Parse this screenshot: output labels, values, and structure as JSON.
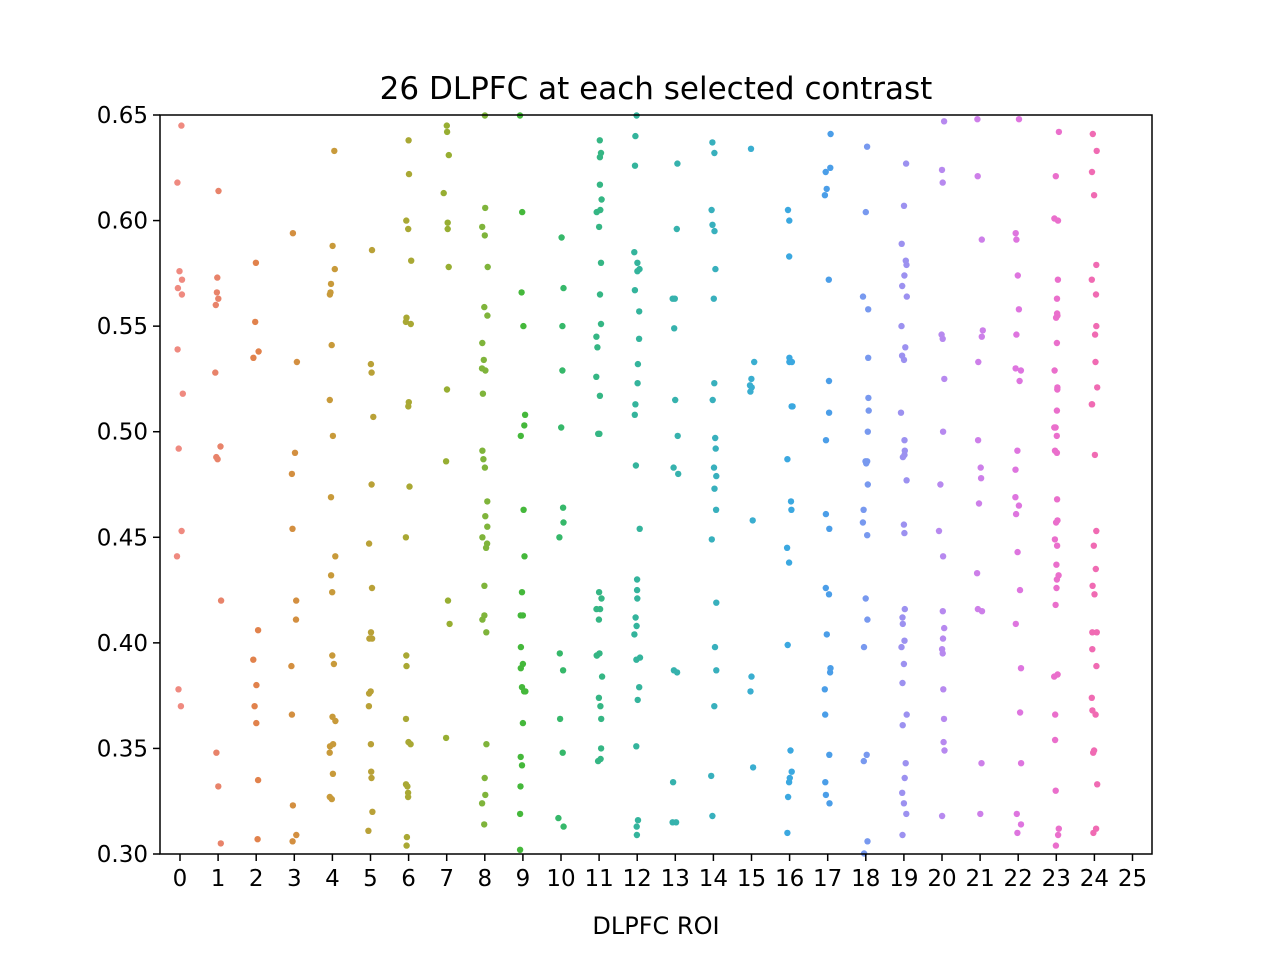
{
  "chart_data": {
    "type": "scatter",
    "title": "26 DLPFC at each selected contrast",
    "xlabel": "DLPFC ROI",
    "ylabel": "",
    "ylim": [
      0.3,
      0.65
    ],
    "xticks": [
      "0",
      "1",
      "2",
      "3",
      "4",
      "5",
      "6",
      "7",
      "8",
      "9",
      "10",
      "11",
      "12",
      "13",
      "14",
      "15",
      "16",
      "17",
      "18",
      "19",
      "20",
      "21",
      "22",
      "23",
      "24",
      "25"
    ],
    "yticks": [
      "0.30",
      "0.35",
      "0.40",
      "0.45",
      "0.50",
      "0.55",
      "0.60",
      "0.65"
    ],
    "colors": [
      "#ef8a80",
      "#e8836a",
      "#e1824c",
      "#d38f40",
      "#c89a3a",
      "#b9a137",
      "#a9a834",
      "#97ae32",
      "#7fb43b",
      "#45b83b",
      "#36b86a",
      "#35b684",
      "#34b49c",
      "#36b2ad",
      "#38b0bd",
      "#3aaed0",
      "#3ba8e0",
      "#4b9ee8",
      "#7899ef",
      "#9c91f0",
      "#b789ef",
      "#cd7fe9",
      "#de75df",
      "#ea6fcc",
      "#f06bb3",
      "#f2a1b3"
    ],
    "series": [
      {
        "name": "0",
        "values": [
          0.645,
          0.618,
          0.576,
          0.572,
          0.568,
          0.565,
          0.539,
          0.518,
          0.492,
          0.453,
          0.441,
          0.378,
          0.37
        ]
      },
      {
        "name": "1",
        "values": [
          0.614,
          0.573,
          0.566,
          0.563,
          0.56,
          0.528,
          0.493,
          0.488,
          0.487,
          0.42,
          0.348,
          0.332,
          0.305
        ]
      },
      {
        "name": "2",
        "values": [
          0.58,
          0.552,
          0.538,
          0.535,
          0.406,
          0.392,
          0.38,
          0.37,
          0.362,
          0.335,
          0.307
        ]
      },
      {
        "name": "3",
        "values": [
          0.594,
          0.533,
          0.49,
          0.48,
          0.454,
          0.42,
          0.411,
          0.389,
          0.366,
          0.323,
          0.309,
          0.306
        ]
      },
      {
        "name": "4",
        "values": [
          0.633,
          0.588,
          0.577,
          0.57,
          0.566,
          0.565,
          0.541,
          0.515,
          0.498,
          0.469,
          0.441,
          0.432,
          0.424,
          0.394,
          0.39,
          0.365,
          0.363,
          0.352,
          0.351,
          0.348,
          0.338,
          0.327,
          0.326
        ]
      },
      {
        "name": "5",
        "values": [
          0.586,
          0.532,
          0.528,
          0.507,
          0.475,
          0.447,
          0.426,
          0.405,
          0.402,
          0.402,
          0.377,
          0.376,
          0.37,
          0.352,
          0.339,
          0.336,
          0.32,
          0.311
        ]
      },
      {
        "name": "6",
        "values": [
          0.638,
          0.622,
          0.6,
          0.596,
          0.581,
          0.554,
          0.552,
          0.551,
          0.514,
          0.512,
          0.474,
          0.45,
          0.394,
          0.389,
          0.364,
          0.353,
          0.352,
          0.333,
          0.332,
          0.329,
          0.327,
          0.308,
          0.304
        ]
      },
      {
        "name": "7",
        "values": [
          0.645,
          0.642,
          0.631,
          0.613,
          0.599,
          0.596,
          0.578,
          0.52,
          0.486,
          0.42,
          0.409,
          0.355
        ]
      },
      {
        "name": "8",
        "values": [
          0.65,
          0.606,
          0.597,
          0.593,
          0.578,
          0.559,
          0.555,
          0.542,
          0.534,
          0.53,
          0.529,
          0.518,
          0.491,
          0.487,
          0.483,
          0.467,
          0.46,
          0.455,
          0.45,
          0.447,
          0.445,
          0.427,
          0.413,
          0.411,
          0.405,
          0.352,
          0.336,
          0.328,
          0.324,
          0.314
        ]
      },
      {
        "name": "9",
        "values": [
          0.65,
          0.604,
          0.566,
          0.55,
          0.508,
          0.503,
          0.498,
          0.463,
          0.441,
          0.424,
          0.413,
          0.413,
          0.398,
          0.39,
          0.388,
          0.379,
          0.377,
          0.377,
          0.362,
          0.346,
          0.342,
          0.332,
          0.319,
          0.302
        ]
      },
      {
        "name": "10",
        "values": [
          0.592,
          0.568,
          0.55,
          0.529,
          0.502,
          0.464,
          0.457,
          0.45,
          0.395,
          0.387,
          0.364,
          0.348,
          0.317,
          0.313
        ]
      },
      {
        "name": "11",
        "values": [
          0.638,
          0.632,
          0.63,
          0.617,
          0.61,
          0.605,
          0.604,
          0.597,
          0.58,
          0.565,
          0.551,
          0.545,
          0.54,
          0.526,
          0.517,
          0.499,
          0.499,
          0.424,
          0.421,
          0.416,
          0.416,
          0.411,
          0.395,
          0.394,
          0.394,
          0.384,
          0.374,
          0.37,
          0.364,
          0.35,
          0.345,
          0.344
        ]
      },
      {
        "name": "12",
        "values": [
          0.65,
          0.64,
          0.626,
          0.585,
          0.58,
          0.577,
          0.576,
          0.567,
          0.557,
          0.544,
          0.532,
          0.523,
          0.513,
          0.508,
          0.484,
          0.454,
          0.43,
          0.425,
          0.421,
          0.412,
          0.408,
          0.404,
          0.393,
          0.392,
          0.379,
          0.373,
          0.351,
          0.316,
          0.313,
          0.309
        ]
      },
      {
        "name": "13",
        "values": [
          0.627,
          0.596,
          0.563,
          0.563,
          0.549,
          0.515,
          0.498,
          0.483,
          0.48,
          0.387,
          0.386,
          0.334,
          0.315,
          0.315
        ]
      },
      {
        "name": "14",
        "values": [
          0.637,
          0.632,
          0.605,
          0.598,
          0.595,
          0.577,
          0.563,
          0.523,
          0.515,
          0.497,
          0.492,
          0.483,
          0.479,
          0.473,
          0.463,
          0.449,
          0.419,
          0.398,
          0.387,
          0.37,
          0.337,
          0.318
        ]
      },
      {
        "name": "15",
        "values": [
          0.634,
          0.533,
          0.525,
          0.522,
          0.521,
          0.519,
          0.458,
          0.384,
          0.377,
          0.341
        ]
      },
      {
        "name": "16",
        "values": [
          0.605,
          0.6,
          0.583,
          0.535,
          0.533,
          0.533,
          0.512,
          0.512,
          0.487,
          0.467,
          0.463,
          0.445,
          0.438,
          0.399,
          0.349,
          0.339,
          0.336,
          0.334,
          0.327,
          0.31
        ]
      },
      {
        "name": "17",
        "values": [
          0.641,
          0.625,
          0.623,
          0.615,
          0.612,
          0.572,
          0.524,
          0.509,
          0.496,
          0.461,
          0.454,
          0.426,
          0.423,
          0.404,
          0.388,
          0.386,
          0.378,
          0.366,
          0.347,
          0.334,
          0.328,
          0.324
        ]
      },
      {
        "name": "18",
        "values": [
          0.635,
          0.604,
          0.564,
          0.558,
          0.535,
          0.516,
          0.51,
          0.5,
          0.486,
          0.486,
          0.485,
          0.475,
          0.463,
          0.457,
          0.451,
          0.421,
          0.411,
          0.398,
          0.347,
          0.344,
          0.306,
          0.3
        ]
      },
      {
        "name": "19",
        "values": [
          0.627,
          0.607,
          0.589,
          0.581,
          0.579,
          0.574,
          0.569,
          0.564,
          0.55,
          0.54,
          0.536,
          0.534,
          0.509,
          0.496,
          0.491,
          0.489,
          0.488,
          0.477,
          0.456,
          0.452,
          0.416,
          0.412,
          0.409,
          0.401,
          0.398,
          0.39,
          0.381,
          0.366,
          0.361,
          0.343,
          0.336,
          0.329,
          0.324,
          0.319,
          0.309
        ]
      },
      {
        "name": "20",
        "values": [
          0.647,
          0.624,
          0.618,
          0.546,
          0.544,
          0.525,
          0.5,
          0.475,
          0.453,
          0.441,
          0.415,
          0.407,
          0.402,
          0.397,
          0.395,
          0.378,
          0.364,
          0.353,
          0.349,
          0.318
        ]
      },
      {
        "name": "21",
        "values": [
          0.648,
          0.621,
          0.591,
          0.548,
          0.545,
          0.533,
          0.496,
          0.483,
          0.478,
          0.466,
          0.433,
          0.416,
          0.415,
          0.343,
          0.319
        ]
      },
      {
        "name": "22",
        "values": [
          0.648,
          0.594,
          0.591,
          0.574,
          0.558,
          0.546,
          0.53,
          0.529,
          0.524,
          0.491,
          0.482,
          0.469,
          0.465,
          0.461,
          0.443,
          0.425,
          0.409,
          0.388,
          0.367,
          0.343,
          0.319,
          0.314,
          0.31
        ]
      },
      {
        "name": "23",
        "values": [
          0.642,
          0.621,
          0.601,
          0.6,
          0.572,
          0.563,
          0.556,
          0.555,
          0.554,
          0.542,
          0.529,
          0.521,
          0.52,
          0.51,
          0.502,
          0.502,
          0.498,
          0.491,
          0.49,
          0.468,
          0.458,
          0.457,
          0.449,
          0.446,
          0.437,
          0.432,
          0.43,
          0.426,
          0.418,
          0.385,
          0.384,
          0.366,
          0.354,
          0.33,
          0.312,
          0.309,
          0.304
        ]
      },
      {
        "name": "24",
        "values": [
          0.641,
          0.633,
          0.623,
          0.612,
          0.579,
          0.572,
          0.565,
          0.55,
          0.546,
          0.533,
          0.521,
          0.513,
          0.513,
          0.489,
          0.453,
          0.446,
          0.435,
          0.427,
          0.423,
          0.405,
          0.405,
          0.397,
          0.389,
          0.374,
          0.368,
          0.366,
          0.349,
          0.348,
          0.333,
          0.312,
          0.31
        ]
      },
      {
        "name": "25",
        "values": []
      }
    ]
  }
}
